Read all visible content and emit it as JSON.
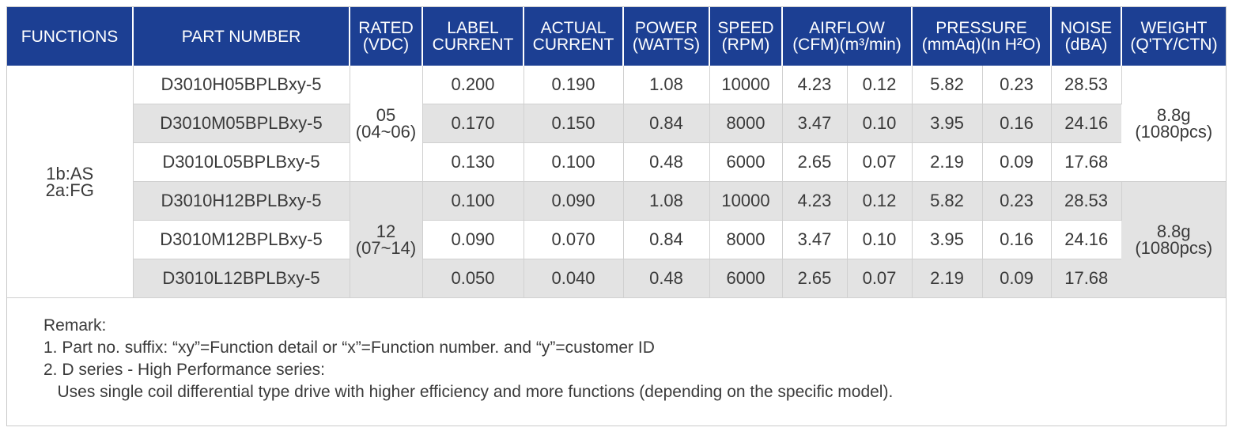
{
  "header": {
    "functions": "FUNCTIONS",
    "part_number": "PART NUMBER",
    "rated": [
      "RATED",
      "(VDC)"
    ],
    "label_current": [
      "LABEL",
      "CURRENT"
    ],
    "actual_current": [
      "ACTUAL",
      "CURRENT"
    ],
    "power": [
      "POWER",
      "(WATTS)"
    ],
    "speed": [
      "SPEED",
      "(RPM)"
    ],
    "airflow": [
      "AIRFLOW",
      "(CFM)(m³/min)"
    ],
    "pressure": [
      "PRESSURE",
      "(mmAq)(In H²O)"
    ],
    "noise": [
      "NOISE",
      "(dBA)"
    ],
    "weight": [
      "WEIGHT",
      "(Q'TY/CTN)"
    ]
  },
  "functions_cell": [
    "1b:AS",
    "2a:FG"
  ],
  "groups": [
    {
      "rated": [
        "05",
        "(04~06)"
      ],
      "weight": [
        "8.8g",
        "(1080pcs)"
      ]
    },
    {
      "rated": [
        "12",
        "(07~14)"
      ],
      "weight": [
        "8.8g",
        "(1080pcs)"
      ]
    }
  ],
  "rows": [
    {
      "part": "D3010H05BPLBxy-5",
      "label_current": "0.200",
      "actual_current": "0.190",
      "power": "1.08",
      "speed": "10000",
      "cfm": "4.23",
      "m3min": "0.12",
      "mmaq": "5.82",
      "inh2o": "0.23",
      "noise": "28.53"
    },
    {
      "part": "D3010M05BPLBxy-5",
      "label_current": "0.170",
      "actual_current": "0.150",
      "power": "0.84",
      "speed": "8000",
      "cfm": "3.47",
      "m3min": "0.10",
      "mmaq": "3.95",
      "inh2o": "0.16",
      "noise": "24.16"
    },
    {
      "part": "D3010L05BPLBxy-5",
      "label_current": "0.130",
      "actual_current": "0.100",
      "power": "0.48",
      "speed": "6000",
      "cfm": "2.65",
      "m3min": "0.07",
      "mmaq": "2.19",
      "inh2o": "0.09",
      "noise": "17.68"
    },
    {
      "part": "D3010H12BPLBxy-5",
      "label_current": "0.100",
      "actual_current": "0.090",
      "power": "1.08",
      "speed": "10000",
      "cfm": "4.23",
      "m3min": "0.12",
      "mmaq": "5.82",
      "inh2o": "0.23",
      "noise": "28.53"
    },
    {
      "part": "D3010M12BPLBxy-5",
      "label_current": "0.090",
      "actual_current": "0.070",
      "power": "0.84",
      "speed": "8000",
      "cfm": "3.47",
      "m3min": "0.10",
      "mmaq": "3.95",
      "inh2o": "0.16",
      "noise": "24.16"
    },
    {
      "part": "D3010L12BPLBxy-5",
      "label_current": "0.050",
      "actual_current": "0.040",
      "power": "0.48",
      "speed": "6000",
      "cfm": "2.65",
      "m3min": "0.07",
      "mmaq": "2.19",
      "inh2o": "0.09",
      "noise": "17.68"
    }
  ],
  "remarks": [
    "Remark:",
    "1. Part no. suffix: “xy”=Function detail or “x”=Function number. and “y”=customer ID",
    "2. D series - High Performance series:",
    "   Uses single coil differential type drive with higher efficiency and more functions (depending on the specific model)."
  ],
  "colors": {
    "header_bg": "#1c3f93",
    "row_grey": "#e3e3e3",
    "text": "#3a3a3a"
  }
}
